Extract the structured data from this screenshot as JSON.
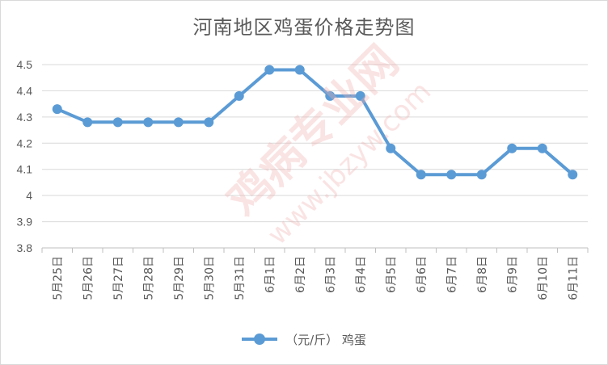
{
  "chart_data": {
    "type": "line",
    "title": "河南地区鸡蛋价格走势图",
    "categories": [
      "5月25日",
      "5月26日",
      "5月27日",
      "5月28日",
      "5月29日",
      "5月30日",
      "5月31日",
      "6月1日",
      "6月2日",
      "6月3日",
      "6月4日",
      "6月5日",
      "6月6日",
      "6月7日",
      "6月8日",
      "6月9日",
      "6月10日",
      "6月11日"
    ],
    "series": [
      {
        "name": "（元/斤） 鸡蛋",
        "values": [
          4.33,
          4.28,
          4.28,
          4.28,
          4.28,
          4.28,
          4.38,
          4.48,
          4.48,
          4.38,
          4.38,
          4.18,
          4.08,
          4.08,
          4.08,
          4.18,
          4.18,
          4.08
        ]
      }
    ],
    "ylim": [
      3.8,
      4.5
    ],
    "yticks": [
      "3.8",
      "3.9",
      "4",
      "4.1",
      "4.2",
      "4.3",
      "4.4",
      "4.5"
    ],
    "grid": true,
    "legend_position": "bottom",
    "line_color": "#5b9bd5"
  },
  "watermark": {
    "text1": "鸡病专业网",
    "text2": "www.jbzyw.com"
  }
}
